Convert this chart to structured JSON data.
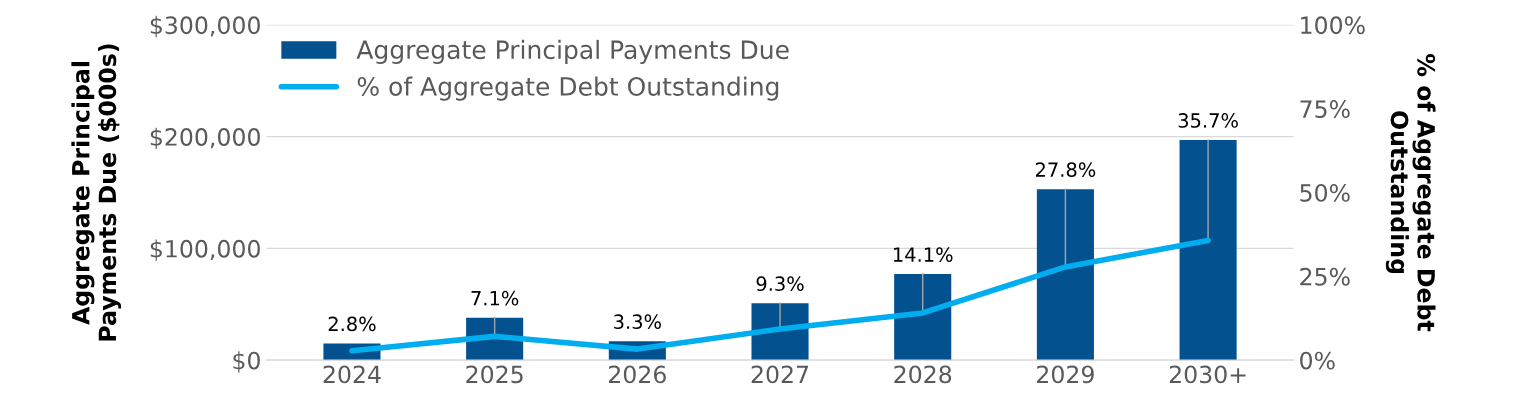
{
  "chart_data": {
    "type": "bar",
    "categories": [
      "2024",
      "2025",
      "2026",
      "2027",
      "2028",
      "2029",
      "2030+"
    ],
    "ylabel": "Aggregate Principal Payments Due ($000s)",
    "y2label": "% of Aggregate Debt Outstanding",
    "series": [
      {
        "name": "Aggregate Principal Payments Due",
        "color": "#03518f",
        "values": [
          15000,
          38000,
          17000,
          51000,
          77000,
          153000,
          197000
        ]
      },
      {
        "name": "% of Aggregate Debt Outstanding",
        "type": "line",
        "axis": "y2",
        "color": "#00aeef",
        "values": [
          2.8,
          7.1,
          3.3,
          9.3,
          14.1,
          27.8,
          35.7
        ],
        "value_labels": [
          "2.8%",
          "7.1%",
          "3.3%",
          "9.3%",
          "14.1%",
          "27.8%",
          "35.7%"
        ]
      }
    ],
    "ylim": [
      0,
      300000
    ],
    "yticks": [
      {
        "value": 0,
        "label": "$0"
      },
      {
        "value": 100000,
        "label": "$100,000"
      },
      {
        "value": 200000,
        "label": "$200,000"
      },
      {
        "value": 300000,
        "label": "$300,000"
      }
    ],
    "y2lim": [
      0,
      100
    ],
    "y2ticks": [
      {
        "value": 0,
        "label": "0%"
      },
      {
        "value": 25,
        "label": "25%"
      },
      {
        "value": 50,
        "label": "50%"
      },
      {
        "value": 75,
        "label": "75%"
      },
      {
        "value": 100,
        "label": "100%"
      }
    ],
    "grid": "y",
    "legend": "top left",
    "marker": "none",
    "line_style": "solid"
  }
}
